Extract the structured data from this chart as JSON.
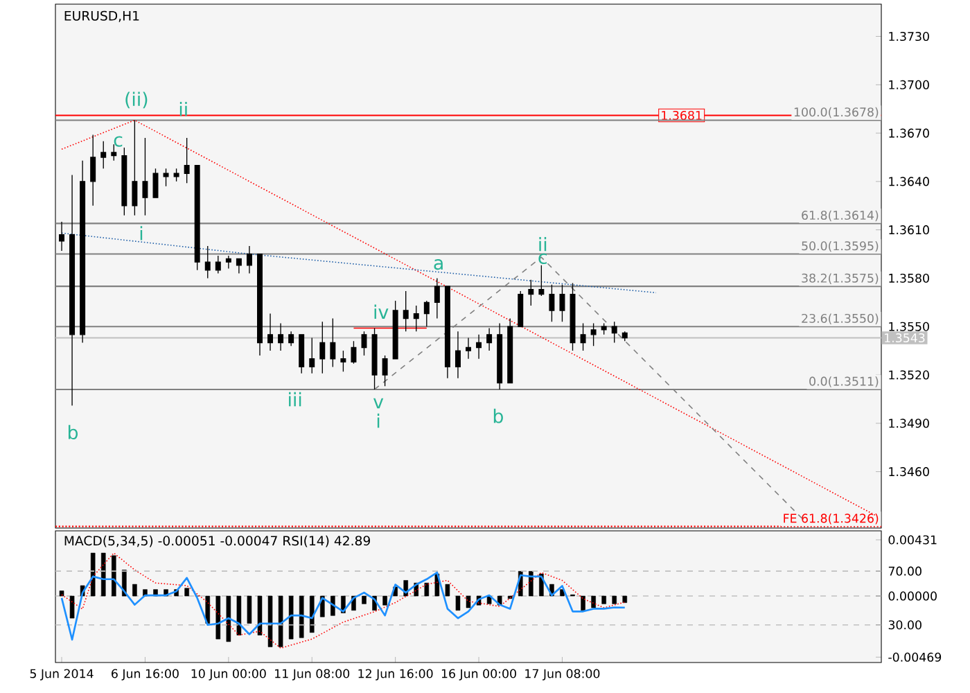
{
  "chart_data": [
    {
      "type": "candlestick",
      "title": "EURUSD,H1",
      "categories": [
        null,
        null,
        null,
        null,
        null,
        null,
        null,
        null,
        null,
        null,
        null,
        null,
        null,
        null,
        null,
        null,
        null,
        null,
        null,
        null,
        null,
        null,
        null,
        null,
        null,
        null,
        null,
        null,
        null,
        null,
        null,
        null,
        null,
        null,
        null,
        null,
        null,
        null,
        null,
        null,
        null,
        null,
        null,
        null,
        null,
        null,
        null,
        null,
        null,
        null,
        null,
        null,
        null,
        null,
        null,
        null,
        null,
        null,
        null,
        null,
        null,
        null,
        null,
        null,
        null,
        null,
        null,
        null,
        null,
        null,
        null,
        null,
        null,
        null,
        null,
        null,
        null,
        null,
        null
      ],
      "ohlc": [
        [
          1.3603,
          1.3615,
          1.3597,
          1.3607
        ],
        [
          1.3607,
          1.3644,
          1.3501,
          1.3545
        ],
        [
          1.3545,
          1.3653,
          1.354,
          1.364
        ],
        [
          1.364,
          1.3669,
          1.3625,
          1.3655
        ],
        [
          1.3655,
          1.3665,
          1.3648,
          1.3658
        ],
        [
          1.3658,
          1.3663,
          1.3653,
          1.3656
        ],
        [
          1.3656,
          1.3661,
          1.3619,
          1.3625
        ],
        [
          1.3625,
          1.3678,
          1.3619,
          1.364
        ],
        [
          1.364,
          1.3667,
          1.3619,
          1.363
        ],
        [
          1.363,
          1.3648,
          1.363,
          1.3645
        ],
        [
          1.3645,
          1.3648,
          1.3637,
          1.3643
        ],
        [
          1.3643,
          1.3648,
          1.364,
          1.3645
        ],
        [
          1.3645,
          1.3667,
          1.3639,
          1.365
        ],
        [
          1.365,
          1.365,
          1.3585,
          1.359
        ],
        [
          1.359,
          1.36,
          1.358,
          1.3585
        ],
        [
          1.3585,
          1.3594,
          1.3583,
          1.359
        ],
        [
          1.359,
          1.3594,
          1.3586,
          1.3592
        ],
        [
          1.3592,
          1.3592,
          1.3583,
          1.3588
        ],
        [
          1.3588,
          1.36,
          1.3583,
          1.3595
        ],
        [
          1.3595,
          1.3595,
          1.3532,
          1.354
        ],
        [
          1.354,
          1.3558,
          1.3535,
          1.3545
        ],
        [
          1.3545,
          1.3552,
          1.3535,
          1.354
        ],
        [
          1.354,
          1.3547,
          1.3538,
          1.3545
        ],
        [
          1.3545,
          1.3545,
          1.3521,
          1.3525
        ],
        [
          1.3525,
          1.3543,
          1.3521,
          1.353
        ],
        [
          1.353,
          1.3553,
          1.3521,
          1.354
        ],
        [
          1.354,
          1.3555,
          1.3525,
          1.353
        ],
        [
          1.353,
          1.3535,
          1.3522,
          1.3528
        ],
        [
          1.3528,
          1.3541,
          1.3527,
          1.3537
        ],
        [
          1.3537,
          1.3547,
          1.3532,
          1.3545
        ],
        [
          1.3545,
          1.3549,
          1.3511,
          1.352
        ],
        [
          1.352,
          1.3532,
          1.3513,
          1.353
        ],
        [
          1.353,
          1.3566,
          1.353,
          1.356
        ],
        [
          1.356,
          1.3572,
          1.3547,
          1.3555
        ],
        [
          1.3555,
          1.3563,
          1.3547,
          1.3558
        ],
        [
          1.3558,
          1.3566,
          1.355,
          1.3565
        ],
        [
          1.3565,
          1.358,
          1.3555,
          1.3575
        ],
        [
          1.3575,
          1.3575,
          1.3518,
          1.3525
        ],
        [
          1.3525,
          1.3547,
          1.3518,
          1.3535
        ],
        [
          1.3535,
          1.3543,
          1.353,
          1.3537
        ],
        [
          1.3537,
          1.3545,
          1.353,
          1.354
        ],
        [
          1.354,
          1.3549,
          1.3535,
          1.3545
        ],
        [
          1.3545,
          1.3552,
          1.3511,
          1.3515
        ],
        [
          1.3515,
          1.3555,
          1.3515,
          1.355
        ],
        [
          1.355,
          1.3572,
          1.355,
          1.357
        ],
        [
          1.357,
          1.3579,
          1.3563,
          1.3573
        ],
        [
          1.3573,
          1.3588,
          1.3569,
          1.357
        ],
        [
          1.357,
          1.3576,
          1.3553,
          1.356
        ],
        [
          1.356,
          1.3576,
          1.3553,
          1.357
        ],
        [
          1.357,
          1.3577,
          1.3535,
          1.354
        ],
        [
          1.354,
          1.3552,
          1.3535,
          1.3545
        ],
        [
          1.3545,
          1.3552,
          1.3538,
          1.3548
        ],
        [
          1.3548,
          1.3552,
          1.3545,
          1.355
        ],
        [
          1.355,
          1.3553,
          1.354,
          1.3546
        ],
        [
          1.3546,
          1.3547,
          1.3541,
          1.3543
        ],
        null,
        null,
        null,
        null,
        null,
        null,
        null,
        null,
        null,
        null,
        null,
        null,
        null,
        null,
        null,
        null,
        null,
        null,
        null,
        null,
        null,
        null,
        null,
        null
      ],
      "series": [
        {
          "type": "line",
          "color": "#ff0000",
          "line_style": "dotted",
          "values": [
            1.366,
            null,
            null,
            null,
            null,
            null,
            null,
            1.3678,
            null,
            null,
            null,
            null,
            null,
            null,
            null,
            null,
            null,
            null,
            null,
            null,
            null,
            null,
            null,
            null,
            null,
            null,
            null,
            null,
            null,
            null,
            null,
            null,
            null,
            null,
            null,
            null,
            null,
            null,
            null,
            null,
            null,
            null,
            null,
            null,
            null,
            null,
            null,
            null,
            null,
            null,
            null,
            null,
            null,
            null,
            null,
            null,
            null,
            null,
            null,
            null,
            null,
            null,
            null,
            null,
            null,
            null,
            null,
            null,
            null,
            null,
            null,
            null,
            null,
            null,
            null,
            null,
            null,
            null,
            1.3433
          ]
        },
        {
          "type": "line",
          "color": "#1f5fa8",
          "line_style": "dotted",
          "values": [
            1.3608,
            null,
            null,
            null,
            null,
            null,
            null,
            null,
            null,
            null,
            null,
            null,
            null,
            null,
            null,
            null,
            null,
            null,
            1.3595,
            null,
            null,
            null,
            null,
            null,
            null,
            null,
            null,
            null,
            null,
            null,
            null,
            null,
            null,
            null,
            null,
            null,
            null,
            null,
            null,
            null,
            null,
            null,
            null,
            null,
            null,
            null,
            null,
            null,
            null,
            null,
            null,
            null,
            null,
            null,
            null,
            null,
            null,
            1.3571,
            null,
            null,
            null,
            null,
            null,
            null,
            null,
            null,
            null,
            null,
            null,
            null,
            null,
            null,
            null,
            null,
            null,
            null,
            null,
            null,
            null
          ]
        },
        {
          "type": "line",
          "color": "#808080",
          "line_style": "dashed",
          "values": [
            null,
            null,
            null,
            null,
            null,
            null,
            null,
            null,
            null,
            null,
            null,
            null,
            null,
            null,
            null,
            null,
            null,
            null,
            null,
            null,
            null,
            null,
            null,
            null,
            null,
            null,
            null,
            null,
            null,
            null,
            1.3511,
            null,
            null,
            null,
            null,
            null,
            null,
            null,
            null,
            null,
            null,
            null,
            null,
            null,
            null,
            null,
            1.3593,
            null,
            null,
            null,
            null,
            null,
            null,
            null,
            null,
            null,
            null,
            null,
            null,
            null,
            null,
            null,
            null,
            null,
            null,
            null,
            null,
            null,
            null,
            null,
            null,
            1.3431,
            null,
            null,
            null,
            null,
            null,
            null,
            null
          ]
        },
        {
          "type": "line",
          "color": "#ff0000",
          "line_style": "solid",
          "values": [
            null,
            null,
            null,
            null,
            null,
            null,
            null,
            null,
            null,
            null,
            null,
            null,
            null,
            null,
            null,
            null,
            null,
            null,
            null,
            null,
            null,
            null,
            null,
            null,
            null,
            null,
            null,
            null,
            1.3549,
            null,
            null,
            null,
            null,
            null,
            null,
            1.3549,
            null,
            null,
            null,
            null,
            null,
            null,
            null,
            null,
            null,
            null,
            null,
            null,
            null,
            null,
            null,
            null,
            null,
            null,
            null,
            null,
            null,
            null,
            null,
            null,
            null,
            null,
            null,
            null,
            null,
            null,
            null,
            null,
            null,
            null,
            null,
            null,
            null,
            null,
            null,
            null,
            null,
            null,
            null
          ]
        }
      ],
      "ylim": [
        1.3425,
        1.375
      ],
      "yticks": [
        {
          "value": 1.373,
          "label": "1.3730"
        },
        {
          "value": 1.37,
          "label": "1.3700"
        },
        {
          "value": 1.367,
          "label": "1.3670"
        },
        {
          "value": 1.364,
          "label": "1.3640"
        },
        {
          "value": 1.361,
          "label": "1.3610"
        },
        {
          "value": 1.358,
          "label": "1.3580"
        },
        {
          "value": 1.355,
          "label": "1.3550"
        },
        {
          "value": 1.352,
          "label": "1.3520"
        },
        {
          "value": 1.349,
          "label": "1.3490"
        },
        {
          "value": 1.346,
          "label": "1.3460"
        }
      ],
      "tick_labels": "y",
      "ref_lines": [
        {
          "axis": "y",
          "value": 1.3681,
          "label": "1.3681",
          "color": "#ff0000"
        },
        {
          "axis": "y",
          "value": 1.3678,
          "label": "100.0(1.3678)",
          "color": "#808080"
        },
        {
          "axis": "y",
          "value": 1.3614,
          "label": "61.8(1.3614)",
          "color": "#808080"
        },
        {
          "axis": "y",
          "value": 1.3595,
          "label": "50.0(1.3595)",
          "color": "#808080"
        },
        {
          "axis": "y",
          "value": 1.3575,
          "label": "38.2(1.3575)",
          "color": "#808080"
        },
        {
          "axis": "y",
          "value": 1.355,
          "label": "23.6(1.3550)",
          "color": "#808080"
        },
        {
          "axis": "y",
          "value": 1.3511,
          "label": "0.0(1.3511)",
          "color": "#808080"
        },
        {
          "axis": "y",
          "value": 1.3426,
          "label": "FE 61.8(1.3426)",
          "color": "#ff0000",
          "line_style": "dotted"
        },
        {
          "axis": "y",
          "value": 1.3543,
          "label": "1.3543",
          "color": "#c0c0c0"
        }
      ],
      "annotations": [
        "(ii)",
        "c",
        "ii",
        "i",
        "b",
        "iii",
        "iv",
        "v",
        "i",
        "a",
        "b",
        "ii",
        "c"
      ]
    },
    {
      "type": "bar",
      "title": "MACD(5,34,5) -0.00051 -0.00047 RSI(14) 42.89",
      "categories": [
        "5 Jun 2014",
        null,
        null,
        null,
        null,
        null,
        null,
        null,
        "6 Jun 16:00",
        null,
        null,
        null,
        null,
        null,
        null,
        null,
        "10 Jun 00:00",
        null,
        null,
        null,
        null,
        null,
        null,
        null,
        "11 Jun 08:00",
        null,
        null,
        null,
        null,
        null,
        null,
        null,
        "12 Jun 16:00",
        null,
        null,
        null,
        null,
        null,
        null,
        null,
        "16 Jun 00:00",
        null,
        null,
        null,
        null,
        null,
        null,
        null,
        "17 Jun 08:00",
        null,
        null,
        null,
        null,
        null,
        null,
        null,
        null,
        null,
        null,
        null,
        null,
        null,
        null,
        null,
        null,
        null,
        null,
        null,
        null,
        null,
        null,
        null,
        null,
        null,
        null,
        null,
        null,
        null,
        null
      ],
      "series": [
        {
          "type": "bar",
          "color": "#000000",
          "values": [
            0.0004,
            -0.0017,
            0.0008,
            0.0033,
            0.0033,
            0.0031,
            0.002,
            0.0009,
            0.0005,
            0.0005,
            0.0005,
            0.0005,
            0.0006,
            0.0,
            -0.0021,
            -0.0033,
            -0.0035,
            -0.003,
            -0.0021,
            -0.003,
            -0.0039,
            -0.0039,
            -0.0033,
            -0.0032,
            -0.0028,
            -0.0016,
            -0.0015,
            -0.0013,
            -0.0011,
            -0.0006,
            -0.0011,
            -0.0007,
            0.0007,
            0.0012,
            0.001,
            0.001,
            0.0017,
            0.0009,
            -0.0011,
            -0.0009,
            -0.0007,
            -0.0006,
            -0.0007,
            -0.0002,
            0.0019,
            0.0019,
            0.0017,
            0.0009,
            0.0005,
            0.0001,
            -0.0011,
            -0.0009,
            -0.0006,
            -0.0006,
            -0.00051,
            null,
            null,
            null,
            null,
            null,
            null,
            null,
            null,
            null,
            null,
            null,
            null,
            null,
            null,
            null,
            null,
            null,
            null,
            null,
            null,
            null,
            null,
            null,
            null
          ]
        },
        {
          "type": "line",
          "color": "#ff0000",
          "line_style": "dotted",
          "values": [
            0.0001,
            null,
            -0.001,
            0.0015,
            null,
            0.0033,
            null,
            0.002,
            null,
            0.001,
            null,
            null,
            0.0008,
            null,
            -0.0005,
            null,
            null,
            -0.003,
            null,
            -0.0027,
            null,
            -0.004,
            null,
            null,
            -0.0033,
            null,
            null,
            -0.002,
            null,
            null,
            -0.0012,
            null,
            -0.0005,
            null,
            null,
            0.0009,
            null,
            0.0012,
            null,
            -0.0004,
            null,
            null,
            -0.0008,
            null,
            0.0005,
            null,
            0.0018,
            null,
            0.0012,
            null,
            -0.0002,
            null,
            -0.0009,
            null,
            -0.00047,
            null,
            null,
            null,
            null,
            null,
            null,
            null,
            null,
            null,
            null,
            null,
            null,
            null,
            null,
            null,
            null,
            null,
            null,
            null,
            null,
            null,
            null,
            null,
            null
          ]
        },
        {
          "type": "line",
          "color": "#1e90ff",
          "line_style": "solid",
          "axis": "y2",
          "values": [
            50,
            19,
            54,
            66,
            64,
            64,
            55,
            45,
            52,
            52,
            52,
            55,
            65,
            50,
            30,
            31,
            35,
            31,
            23,
            31,
            31,
            31,
            37,
            37,
            35,
            50,
            45,
            40,
            50,
            54,
            49,
            37,
            60,
            54,
            60,
            64,
            69,
            42,
            35,
            40,
            49,
            52,
            45,
            42,
            67,
            66,
            66,
            52,
            59,
            40,
            40,
            42,
            42,
            43,
            42.89,
            null,
            null,
            null,
            null,
            null,
            null,
            null,
            null,
            null,
            null,
            null,
            null,
            null,
            null,
            null,
            null,
            null,
            null,
            null,
            null,
            null,
            null,
            null,
            null
          ]
        }
      ],
      "ylim": [
        -0.0051,
        0.005
      ],
      "y2lim": [
        2,
        100
      ],
      "yticks": [
        {
          "value": 0.00431,
          "label": "0.00431"
        },
        {
          "value": 0,
          "label": "0.00000"
        },
        {
          "value": -0.00469,
          "label": "-0.00469"
        }
      ],
      "y2ticks": [
        {
          "value": 70,
          "label": "70.00"
        },
        {
          "value": 30,
          "label": "30.00"
        }
      ],
      "grid": "y"
    }
  ]
}
